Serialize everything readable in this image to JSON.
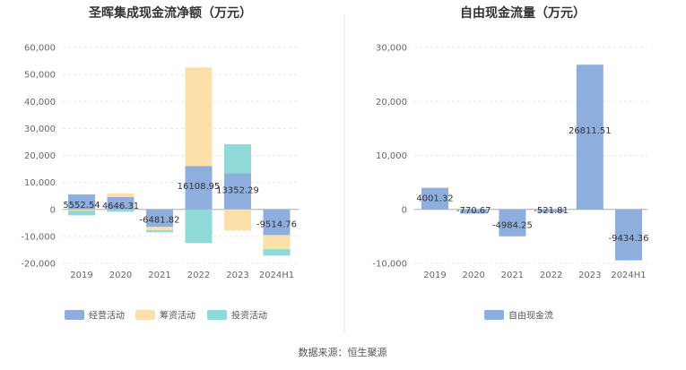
{
  "source": "数据来源：恒生聚源",
  "chart_data": [
    {
      "type": "bar",
      "stacked": true,
      "title": "圣晖集成现金流净额（万元）",
      "categories": [
        "2019",
        "2020",
        "2021",
        "2022",
        "2023",
        "2024H1"
      ],
      "ylim": [
        -20000,
        60000
      ],
      "yticks": [
        -20000,
        -10000,
        0,
        10000,
        20000,
        30000,
        40000,
        50000,
        60000
      ],
      "ytick_labels": [
        "-20,000",
        "-10,000",
        "0",
        "10,000",
        "20,000",
        "30,000",
        "40,000",
        "50,000",
        "60,000"
      ],
      "legend_position": "bottom",
      "series": [
        {
          "name": "经营活动",
          "color": "#8eaedd",
          "values": [
            5552.54,
            4646.31,
            -6481.82,
            16108.95,
            13352.29,
            -9514.76
          ]
        },
        {
          "name": "筹资活动",
          "color": "#fddfa9",
          "values": [
            -400,
            1300,
            -1200,
            36500,
            -7800,
            -5200
          ]
        },
        {
          "name": "投资活动",
          "color": "#8fd9d9",
          "values": [
            -1800,
            -900,
            -800,
            -12500,
            10800,
            -2400
          ]
        }
      ],
      "data_labels": [
        "5552.54",
        "4646.31",
        "-6481.82",
        "16108.95",
        "13352.29",
        "-9514.76"
      ]
    },
    {
      "type": "bar",
      "title": "自由现金流量（万元）",
      "categories": [
        "2019",
        "2020",
        "2021",
        "2022",
        "2023",
        "2024H1"
      ],
      "ylim": [
        -10000,
        30000
      ],
      "yticks": [
        -10000,
        0,
        10000,
        20000,
        30000
      ],
      "ytick_labels": [
        "-10,000",
        "0",
        "10,000",
        "20,000",
        "30,000"
      ],
      "legend_position": "bottom",
      "series": [
        {
          "name": "自由现金流",
          "color": "#8eaedd",
          "values": [
            4001.32,
            -770.67,
            -4984.25,
            -521.81,
            26811.51,
            -9434.36
          ]
        }
      ],
      "data_labels": [
        "4001.32",
        "-770.67",
        "-4984.25",
        "-521.81",
        "26811.51",
        "-9434.36"
      ]
    }
  ]
}
